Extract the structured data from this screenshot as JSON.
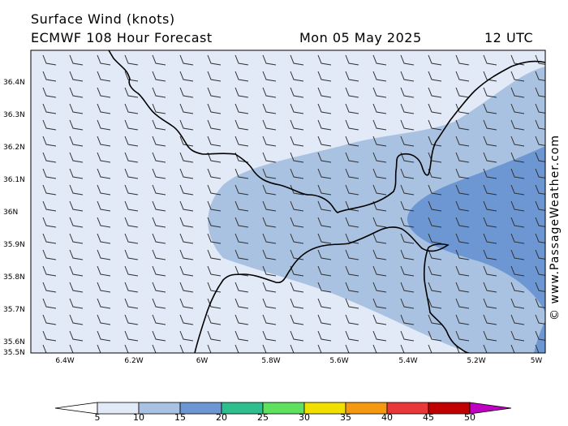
{
  "header": {
    "title": "Surface Wind (knots)",
    "model": "ECMWF 108 Hour Forecast",
    "date": "Mon 05 May 2025",
    "time": "12 UTC"
  },
  "watermark": "© www.PassageWeather.com",
  "map": {
    "lat_labels": [
      "36.4N",
      "36.3N",
      "36.2N",
      "36.1N",
      "36N",
      "35.9N",
      "35.8N",
      "35.7N",
      "35.6N",
      "35.5N"
    ],
    "lat_values": [
      36.4,
      36.3,
      36.2,
      36.1,
      36.0,
      35.9,
      35.8,
      35.7,
      35.6,
      35.5
    ],
    "lon_labels": [
      "6.4W",
      "6.2W",
      "6W",
      "5.8W",
      "5.6W",
      "5.4W",
      "5.2W",
      "5W"
    ],
    "lon_values": [
      -6.4,
      -6.2,
      -6.0,
      -5.8,
      -5.6,
      -5.4,
      -5.2,
      -5.0
    ],
    "lon_range": [
      -6.5,
      -5.0
    ],
    "lat_range": [
      35.5,
      36.5
    ],
    "wind_barbs": "light westerly flow, barbs on regular grid",
    "shading": "5-15 knots band through the strait, strongest near 5W"
  },
  "colorbar": {
    "ticks": [
      "5",
      "10",
      "15",
      "20",
      "25",
      "30",
      "35",
      "40",
      "45",
      "50"
    ],
    "colors": [
      "#e3eaf7",
      "#a9c2e2",
      "#6d97d3",
      "#2fbf8f",
      "#5fe05f",
      "#f0e000",
      "#f59a10",
      "#e83838",
      "#c00000",
      "#c000c0"
    ],
    "under_color": "#ffffff"
  }
}
